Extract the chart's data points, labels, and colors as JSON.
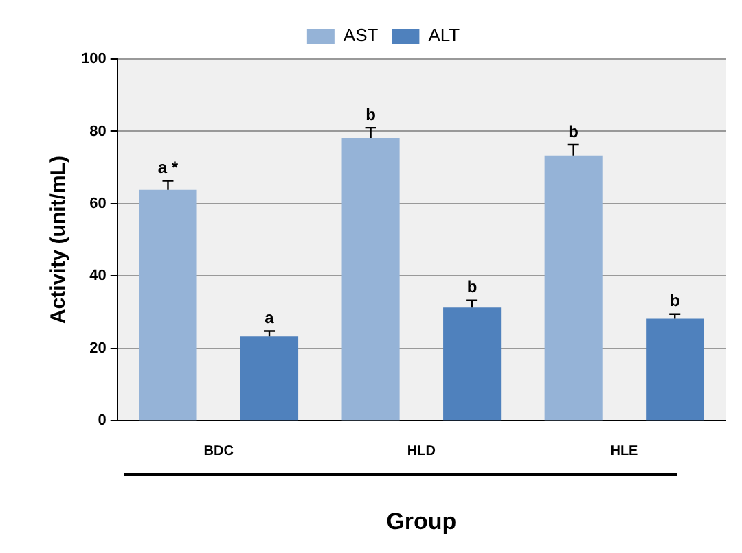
{
  "chart_data": {
    "type": "bar",
    "xlabel": "Group",
    "ylabel": "Activity (unit/mL)",
    "categories": [
      "BDC",
      "HLD",
      "HLE"
    ],
    "series": [
      {
        "name": "AST",
        "color": "#95b3d7",
        "values": [
          63.8,
          78.2,
          73.3
        ],
        "errors": [
          [
            63.8,
            66.3
          ],
          [
            78.2,
            81
          ],
          [
            73.3,
            76.3
          ]
        ]
      },
      {
        "name": "ALT",
        "color": "#4f81bd",
        "values": [
          23.3,
          31.3,
          28.2
        ],
        "errors": [
          [
            23.3,
            24.8
          ],
          [
            31.3,
            33.3
          ],
          [
            28.2,
            29.5
          ]
        ]
      }
    ],
    "ylim": [
      0,
      100
    ],
    "yticks": [
      0,
      20,
      40,
      60,
      80,
      100
    ],
    "grid": "y",
    "legend": "top",
    "annotations": [
      "a *",
      "a",
      "b",
      "b",
      "b",
      "b"
    ]
  }
}
